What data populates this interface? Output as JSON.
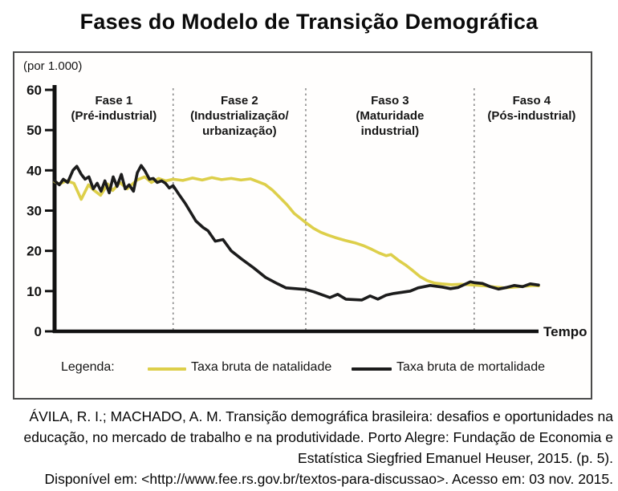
{
  "title": "Fases do Modelo de Transição Demográfica",
  "colors": {
    "birth_rate": "#ddcf4a",
    "death_rate": "#1c1c1c",
    "phase_divider": "#8a8a8a",
    "axis": "#111111",
    "panel_border": "#4b4b4b"
  },
  "chart_data": {
    "type": "line",
    "title": "Fases do Modelo de Transição Demográfica",
    "unit_label": "(por 1.000)",
    "xlabel": "Tempo",
    "ylabel": "(por 1.000)",
    "ylim": [
      0,
      60
    ],
    "y_ticks": [
      0,
      10,
      20,
      30,
      40,
      50,
      60
    ],
    "x_range_pct": [
      0,
      100
    ],
    "grid": false,
    "legend_position": "bottom",
    "phase_boundaries_x_pct": [
      24.5,
      51.9,
      86.7
    ],
    "phases": [
      {
        "lines": [
          "Fase 1",
          "(Pré-industrial)"
        ]
      },
      {
        "lines": [
          "Fase 2",
          "(Industrialização/",
          "urbanização)"
        ]
      },
      {
        "lines": [
          "Faso 3",
          "(Maturidade",
          "industrial)"
        ]
      },
      {
        "lines": [
          "Faso 4",
          "(Pós-industrial)"
        ]
      }
    ],
    "series": [
      {
        "name": "Taxa bruta de natalidade",
        "semantic": "birth-rate-line",
        "color": "#ddcf4a",
        "points": [
          [
            0,
            37.2
          ],
          [
            1,
            36.6
          ],
          [
            2.5,
            37.4
          ],
          [
            4,
            36.8
          ],
          [
            5.5,
            32.8
          ],
          [
            7,
            36.4
          ],
          [
            8,
            35.2
          ],
          [
            9.5,
            33.8
          ],
          [
            11,
            36.6
          ],
          [
            12,
            35.0
          ],
          [
            13.5,
            37.0
          ],
          [
            15,
            35.4
          ],
          [
            17,
            37.6
          ],
          [
            18.6,
            38.4
          ],
          [
            20,
            37.0
          ],
          [
            21.5,
            38.0
          ],
          [
            23,
            37.4
          ],
          [
            24.5,
            37.8
          ],
          [
            26.5,
            37.5
          ],
          [
            28.5,
            38.1
          ],
          [
            30.5,
            37.6
          ],
          [
            32.5,
            38.2
          ],
          [
            34.5,
            37.7
          ],
          [
            36.5,
            38.0
          ],
          [
            38.5,
            37.6
          ],
          [
            40.5,
            37.9
          ],
          [
            42,
            37.2
          ],
          [
            43.5,
            36.5
          ],
          [
            45,
            35.1
          ],
          [
            46.5,
            33.3
          ],
          [
            48,
            31.5
          ],
          [
            49.5,
            29.3
          ],
          [
            51.9,
            27.0
          ],
          [
            53.5,
            25.6
          ],
          [
            55,
            24.6
          ],
          [
            56.5,
            23.9
          ],
          [
            58,
            23.3
          ],
          [
            60,
            22.6
          ],
          [
            62,
            22.0
          ],
          [
            64,
            21.2
          ],
          [
            65.5,
            20.4
          ],
          [
            67,
            19.5
          ],
          [
            68.5,
            18.8
          ],
          [
            69.5,
            19.1
          ],
          [
            71,
            17.7
          ],
          [
            72.5,
            16.5
          ],
          [
            74,
            15.1
          ],
          [
            75.5,
            13.6
          ],
          [
            77,
            12.6
          ],
          [
            78.5,
            12.0
          ],
          [
            80,
            11.8
          ],
          [
            82,
            11.6
          ],
          [
            84,
            11.7
          ],
          [
            86.7,
            11.5
          ],
          [
            89,
            11.3
          ],
          [
            91,
            11.0
          ],
          [
            93,
            10.8
          ],
          [
            95,
            11.0
          ],
          [
            97,
            11.2
          ],
          [
            99,
            11.4
          ],
          [
            100,
            11.3
          ]
        ]
      },
      {
        "name": "Taxa bruta de mortalidade",
        "semantic": "death-rate-line",
        "color": "#1c1c1c",
        "points": [
          [
            0,
            37.4
          ],
          [
            1,
            36.4
          ],
          [
            1.8,
            37.8
          ],
          [
            2.7,
            37.0
          ],
          [
            3.8,
            40.0
          ],
          [
            4.6,
            41.0
          ],
          [
            5.5,
            39.0
          ],
          [
            6.3,
            37.8
          ],
          [
            7.1,
            38.4
          ],
          [
            8,
            35.4
          ],
          [
            8.8,
            36.8
          ],
          [
            9.6,
            34.8
          ],
          [
            10.4,
            37.4
          ],
          [
            11.3,
            34.4
          ],
          [
            12.1,
            38.4
          ],
          [
            12.9,
            36.0
          ],
          [
            13.8,
            39.0
          ],
          [
            14.6,
            35.4
          ],
          [
            15.4,
            36.4
          ],
          [
            16.3,
            34.8
          ],
          [
            17.1,
            39.4
          ],
          [
            17.9,
            41.2
          ],
          [
            18.7,
            39.8
          ],
          [
            19.6,
            37.8
          ],
          [
            20.4,
            38.0
          ],
          [
            21.2,
            37.0
          ],
          [
            22.1,
            37.4
          ],
          [
            22.9,
            36.8
          ],
          [
            23.7,
            35.6
          ],
          [
            24.5,
            36.2
          ],
          [
            25.7,
            34.0
          ],
          [
            27,
            31.8
          ],
          [
            29.2,
            27.4
          ],
          [
            30.7,
            25.8
          ],
          [
            31.7,
            25.0
          ],
          [
            33.2,
            22.4
          ],
          [
            34.8,
            22.8
          ],
          [
            36.5,
            20.0
          ],
          [
            38.6,
            18.0
          ],
          [
            41.1,
            15.8
          ],
          [
            43.6,
            13.4
          ],
          [
            46.1,
            11.8
          ],
          [
            47.8,
            10.8
          ],
          [
            51.9,
            10.4
          ],
          [
            53.6,
            9.8
          ],
          [
            56.9,
            8.4
          ],
          [
            58.5,
            9.2
          ],
          [
            60.2,
            8.0
          ],
          [
            63.5,
            7.8
          ],
          [
            65.2,
            8.8
          ],
          [
            66.8,
            8.0
          ],
          [
            68.5,
            9.0
          ],
          [
            70.1,
            9.4
          ],
          [
            73.5,
            10.0
          ],
          [
            75.1,
            10.8
          ],
          [
            77.6,
            11.4
          ],
          [
            80.1,
            11.0
          ],
          [
            81.8,
            10.6
          ],
          [
            83.4,
            10.9
          ],
          [
            85.9,
            12.3
          ],
          [
            86.7,
            12.1
          ],
          [
            88.4,
            11.9
          ],
          [
            90,
            11.1
          ],
          [
            91.7,
            10.5
          ],
          [
            93.4,
            10.9
          ],
          [
            95,
            11.4
          ],
          [
            96.7,
            11.1
          ],
          [
            98.3,
            11.8
          ],
          [
            100,
            11.5
          ]
        ]
      }
    ]
  },
  "legend": {
    "title": "Legenda:",
    "items": [
      {
        "label": "Taxa bruta de natalidade",
        "color": "#ddcf4a"
      },
      {
        "label": "Taxa bruta de mortalidade",
        "color": "#1c1c1c"
      }
    ]
  },
  "citation": {
    "lines": [
      "ÁVILA, R. I.; MACHADO, A. M. Transição demográfica brasileira: desafios e oportunidades na",
      "educação, no mercado de trabalho e na produtividade. Porto Alegre: Fundação de Economia e",
      "Estatística Siegfried Emanuel Heuser, 2015. (p. 5).",
      "Disponível em: <http://www.fee.rs.gov.br/textos-para-discussao>. Acesso em: 03 nov. 2015."
    ]
  }
}
